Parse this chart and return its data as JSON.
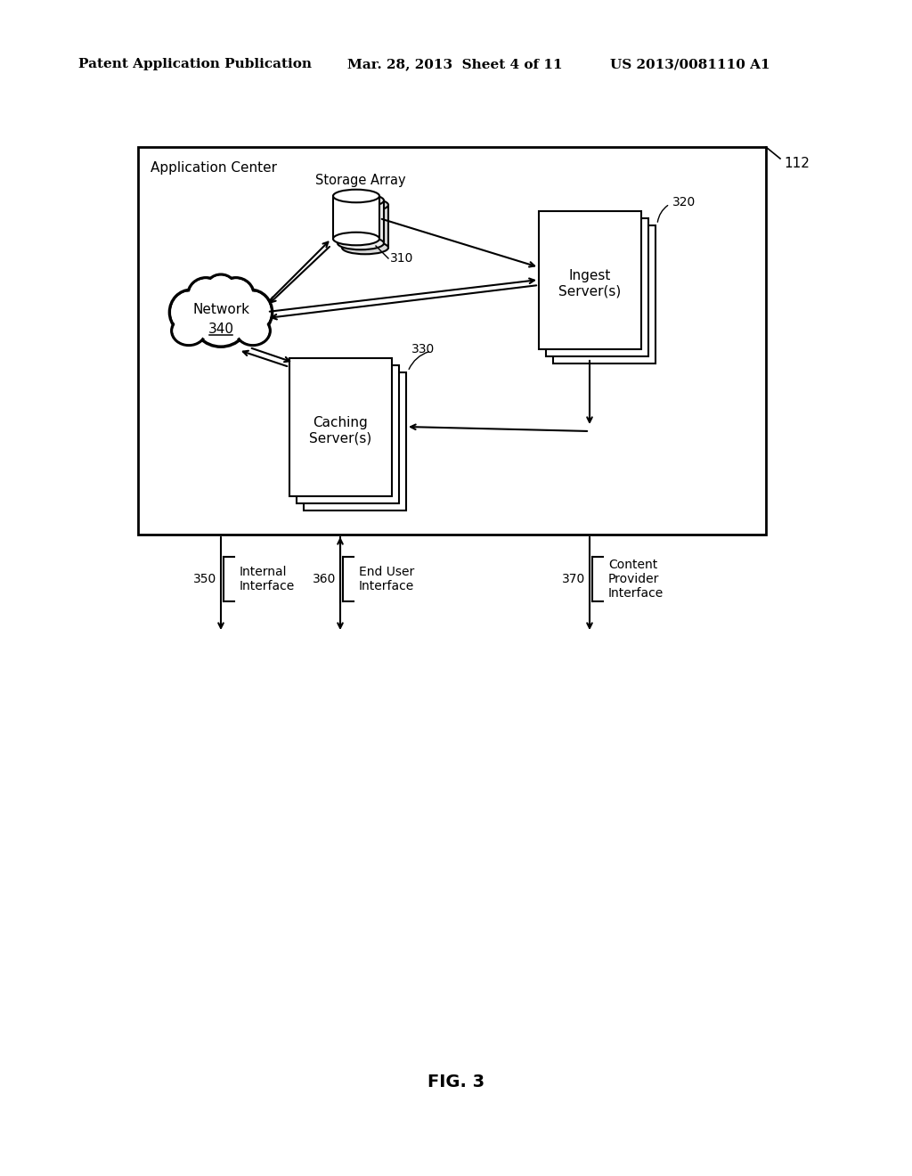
{
  "bg_color": "#ffffff",
  "header_left": "Patent Application Publication",
  "header_mid": "Mar. 28, 2013  Sheet 4 of 11",
  "header_right": "US 2013/0081110 A1",
  "fig_label": "FIG. 3",
  "outer_box_label": "112",
  "app_center_label": "Application Center",
  "storage_array_label": "Storage Array",
  "storage_label": "310",
  "ingest_label": "Ingest\nServer(s)",
  "ingest_num": "320",
  "caching_label": "Caching\nServer(s)",
  "caching_num": "330",
  "network_label": "Network",
  "network_num": "340",
  "interface_350": "350",
  "interface_350_text": "Internal\nInterface",
  "interface_360": "360",
  "interface_360_text": "End User\nInterface",
  "interface_370": "370",
  "interface_370_text": "Content\nProvider\nInterface"
}
